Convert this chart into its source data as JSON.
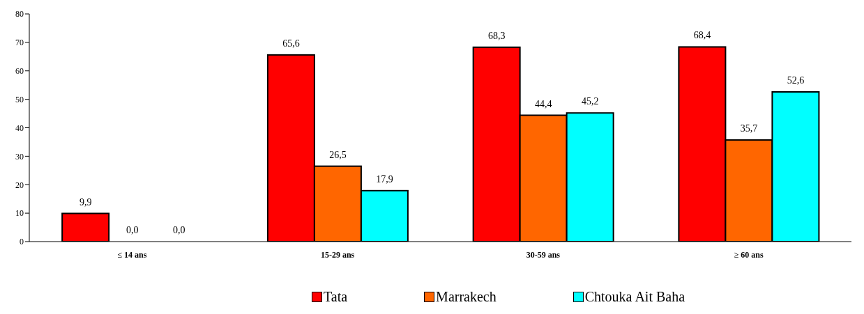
{
  "chart_data": {
    "type": "bar",
    "categories": [
      "≤ 14 ans",
      "15-29 ans",
      "30-59 ans",
      "≥ 60 ans"
    ],
    "series": [
      {
        "name": "Tata",
        "color": "#ff0000",
        "values": [
          9.9,
          65.6,
          68.3,
          68.4
        ],
        "value_labels": [
          "9,9",
          "65,6",
          "68,3",
          "68,4"
        ]
      },
      {
        "name": "Marrakech",
        "color": "#ff6600",
        "values": [
          0,
          26.5,
          44.4,
          35.7
        ],
        "value_labels": [
          "0,0",
          "26,5",
          "44,4",
          "35,7"
        ]
      },
      {
        "name": "Chtouka Ait Baha",
        "color": "#00ffff",
        "values": [
          0,
          17.9,
          45.2,
          52.6
        ],
        "value_labels": [
          "0,0",
          "17,9",
          "45,2",
          "52,6"
        ]
      }
    ],
    "ylim": [
      0,
      80
    ],
    "yticks": [
      0,
      10,
      20,
      30,
      40,
      50,
      60,
      70,
      80
    ],
    "legend": "bottom"
  }
}
